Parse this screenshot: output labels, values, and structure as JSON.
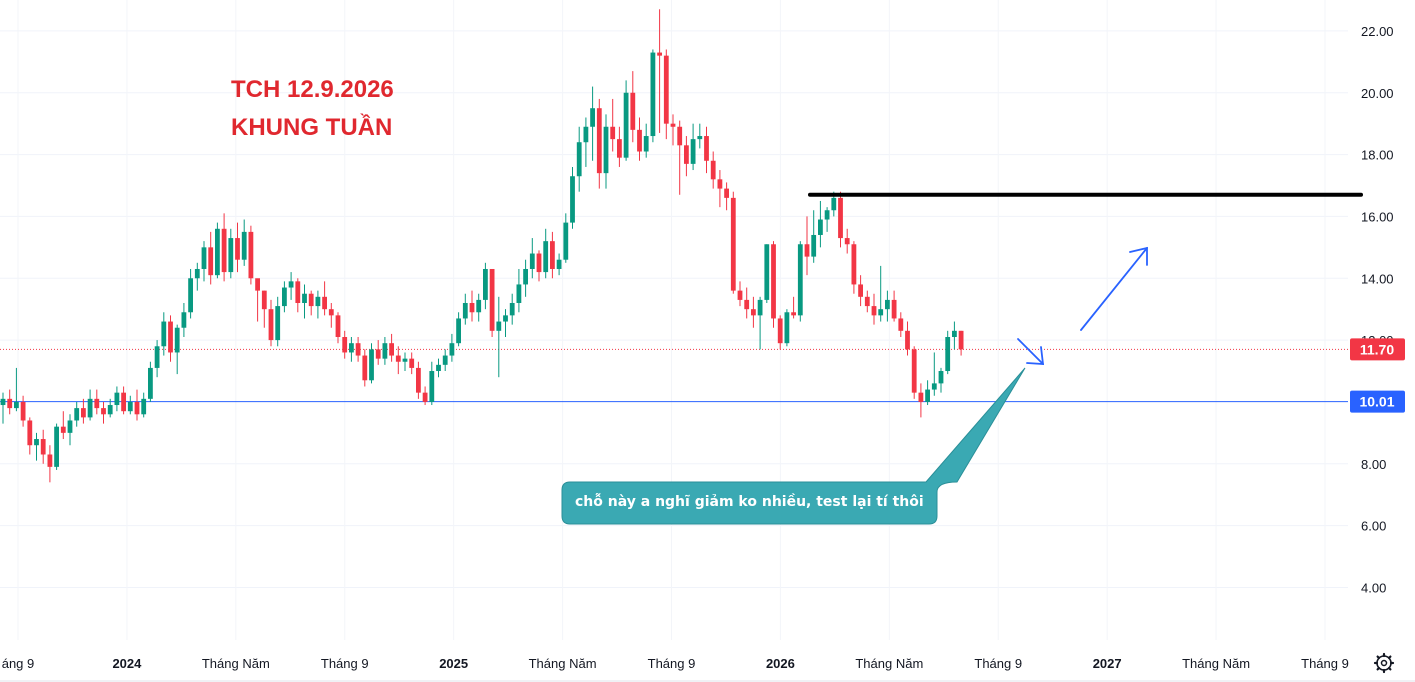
{
  "chart_data": {
    "type": "candlestick",
    "title": "TCH 12.9.2026",
    "subtitle": "KHUNG TUẦN",
    "ylim": [
      2.3,
      23.0
    ],
    "y_ticks": [
      "22.00",
      "20.00",
      "18.00",
      "16.00",
      "14.00",
      "12.00",
      "8.00",
      "6.00",
      "4.00"
    ],
    "x_ticks": [
      {
        "label": "áng 9",
        "bold": false
      },
      {
        "label": "2024",
        "bold": true
      },
      {
        "label": "Tháng Năm",
        "bold": false
      },
      {
        "label": "Tháng 9",
        "bold": false
      },
      {
        "label": "2025",
        "bold": true
      },
      {
        "label": "Tháng Năm",
        "bold": false
      },
      {
        "label": "Tháng 9",
        "bold": false
      },
      {
        "label": "2026",
        "bold": true
      },
      {
        "label": "Tháng Năm",
        "bold": false
      },
      {
        "label": "Tháng 9",
        "bold": false
      },
      {
        "label": "2027",
        "bold": true
      },
      {
        "label": "Tháng Năm",
        "bold": false
      },
      {
        "label": "Tháng 9",
        "bold": false
      }
    ],
    "price_lines": [
      {
        "value": 11.7,
        "label": "11.70",
        "color": "#f23645",
        "style": "dotted"
      },
      {
        "value": 10.01,
        "label": "10.01",
        "color": "#2962ff",
        "style": "solid"
      }
    ],
    "resistance": {
      "value": 16.7,
      "color": "#000000"
    },
    "annotation": "chỗ này a nghĩ giảm ko nhiều, test lại tí thôi",
    "colors": {
      "up": "#089981",
      "down": "#f23645",
      "callout": "#3aa9b3",
      "arrow": "#2962ff"
    },
    "candles": [
      [
        9.9,
        10.3,
        9.3,
        10.1
      ],
      [
        10.1,
        10.4,
        9.6,
        9.8
      ],
      [
        9.8,
        11.1,
        9.7,
        10.0
      ],
      [
        10.0,
        10.2,
        9.2,
        9.4
      ],
      [
        9.4,
        9.5,
        8.3,
        8.6
      ],
      [
        8.6,
        9.0,
        8.1,
        8.8
      ],
      [
        8.8,
        9.1,
        8.0,
        8.3
      ],
      [
        8.3,
        8.6,
        7.4,
        7.9
      ],
      [
        7.9,
        9.3,
        7.8,
        9.2
      ],
      [
        9.2,
        9.7,
        8.8,
        9.0
      ],
      [
        9.0,
        9.6,
        8.6,
        9.4
      ],
      [
        9.4,
        10.0,
        9.2,
        9.8
      ],
      [
        9.8,
        10.1,
        9.3,
        9.5
      ],
      [
        9.5,
        10.4,
        9.4,
        10.1
      ],
      [
        10.1,
        10.4,
        9.6,
        9.8
      ],
      [
        9.8,
        10.0,
        9.3,
        9.6
      ],
      [
        9.6,
        10.1,
        9.5,
        9.9
      ],
      [
        9.9,
        10.5,
        9.7,
        10.3
      ],
      [
        10.3,
        10.5,
        9.6,
        9.7
      ],
      [
        9.7,
        10.2,
        9.6,
        10.0
      ],
      [
        10.0,
        10.4,
        9.4,
        9.6
      ],
      [
        9.6,
        10.3,
        9.5,
        10.1
      ],
      [
        10.1,
        11.3,
        10.0,
        11.1
      ],
      [
        11.1,
        12.0,
        10.8,
        11.8
      ],
      [
        11.8,
        12.9,
        11.5,
        12.6
      ],
      [
        12.6,
        12.8,
        11.3,
        11.6
      ],
      [
        11.6,
        12.5,
        10.9,
        12.4
      ],
      [
        12.4,
        13.2,
        12.1,
        12.9
      ],
      [
        12.9,
        14.3,
        12.7,
        14.0
      ],
      [
        14.0,
        14.5,
        13.6,
        14.3
      ],
      [
        14.3,
        15.2,
        13.9,
        15.0
      ],
      [
        15.0,
        15.5,
        13.8,
        14.1
      ],
      [
        14.1,
        15.8,
        14.0,
        15.6
      ],
      [
        15.6,
        16.1,
        13.9,
        14.2
      ],
      [
        14.2,
        15.6,
        14.0,
        15.3
      ],
      [
        15.3,
        15.8,
        14.2,
        14.6
      ],
      [
        14.6,
        15.9,
        14.4,
        15.5
      ],
      [
        15.5,
        15.7,
        13.8,
        14.0
      ],
      [
        14.0,
        13.9,
        12.6,
        13.6
      ],
      [
        13.6,
        13.6,
        12.4,
        13.0
      ],
      [
        13.0,
        13.3,
        11.8,
        12.0
      ],
      [
        12.0,
        13.4,
        11.8,
        13.1
      ],
      [
        13.1,
        13.9,
        12.9,
        13.7
      ],
      [
        13.7,
        14.2,
        13.3,
        13.9
      ],
      [
        13.9,
        14.0,
        12.9,
        13.2
      ],
      [
        13.2,
        13.8,
        12.7,
        13.5
      ],
      [
        13.5,
        13.6,
        12.8,
        13.1
      ],
      [
        13.1,
        13.6,
        12.7,
        13.4
      ],
      [
        13.4,
        13.9,
        12.8,
        13.0
      ],
      [
        13.0,
        13.2,
        12.4,
        12.8
      ],
      [
        12.8,
        12.9,
        11.9,
        12.1
      ],
      [
        12.1,
        12.3,
        11.4,
        11.6
      ],
      [
        11.6,
        12.1,
        11.3,
        11.9
      ],
      [
        11.9,
        12.1,
        11.3,
        11.5
      ],
      [
        11.5,
        11.7,
        10.5,
        10.7
      ],
      [
        10.7,
        11.9,
        10.6,
        11.7
      ],
      [
        11.7,
        12.0,
        11.2,
        11.4
      ],
      [
        11.4,
        12.1,
        11.2,
        11.9
      ],
      [
        11.9,
        12.2,
        11.3,
        11.5
      ],
      [
        11.5,
        11.8,
        10.9,
        11.3
      ],
      [
        11.3,
        11.6,
        11.0,
        11.4
      ],
      [
        11.4,
        11.6,
        10.9,
        11.1
      ],
      [
        11.1,
        11.3,
        10.1,
        10.3
      ],
      [
        10.3,
        10.5,
        9.9,
        10.0
      ],
      [
        10.0,
        11.3,
        9.9,
        11.0
      ],
      [
        11.0,
        11.4,
        10.8,
        11.2
      ],
      [
        11.2,
        11.7,
        11.0,
        11.5
      ],
      [
        11.5,
        12.2,
        11.3,
        11.9
      ],
      [
        11.9,
        12.9,
        11.8,
        12.7
      ],
      [
        12.7,
        13.5,
        12.5,
        13.2
      ],
      [
        13.2,
        13.6,
        12.6,
        12.9
      ],
      [
        12.9,
        13.5,
        12.6,
        13.3
      ],
      [
        13.3,
        14.5,
        13.0,
        14.3
      ],
      [
        14.3,
        14.3,
        12.1,
        12.3
      ],
      [
        12.3,
        13.4,
        10.8,
        12.6
      ],
      [
        12.6,
        13.0,
        12.1,
        12.8
      ],
      [
        12.8,
        13.5,
        12.5,
        13.2
      ],
      [
        13.2,
        14.3,
        12.9,
        13.8
      ],
      [
        13.8,
        14.6,
        13.4,
        14.3
      ],
      [
        14.3,
        15.3,
        14.0,
        14.8
      ],
      [
        14.8,
        14.9,
        13.9,
        14.2
      ],
      [
        14.2,
        15.6,
        14.0,
        15.2
      ],
      [
        15.2,
        15.5,
        14.0,
        14.3
      ],
      [
        14.3,
        14.8,
        14.1,
        14.6
      ],
      [
        14.6,
        16.1,
        14.5,
        15.8
      ],
      [
        15.8,
        17.6,
        15.6,
        17.3
      ],
      [
        17.3,
        18.9,
        16.8,
        18.4
      ],
      [
        18.4,
        19.2,
        17.6,
        18.9
      ],
      [
        18.9,
        20.2,
        17.8,
        19.5
      ],
      [
        19.5,
        19.8,
        16.9,
        17.4
      ],
      [
        17.4,
        19.3,
        16.9,
        18.9
      ],
      [
        18.9,
        19.8,
        18.1,
        18.5
      ],
      [
        18.5,
        18.9,
        17.6,
        17.9
      ],
      [
        17.9,
        20.4,
        17.8,
        20.0
      ],
      [
        20.0,
        20.7,
        18.4,
        18.8
      ],
      [
        18.8,
        19.2,
        17.8,
        18.1
      ],
      [
        18.1,
        19.0,
        17.9,
        18.6
      ],
      [
        18.6,
        21.4,
        18.4,
        21.3
      ],
      [
        21.3,
        22.7,
        18.7,
        21.2
      ],
      [
        21.2,
        21.4,
        18.5,
        19.0
      ],
      [
        19.0,
        19.3,
        18.3,
        18.9
      ],
      [
        18.9,
        19.1,
        16.7,
        18.3
      ],
      [
        18.3,
        18.6,
        17.3,
        17.7
      ],
      [
        17.7,
        19.0,
        17.5,
        18.5
      ],
      [
        18.5,
        19.0,
        18.2,
        18.6
      ],
      [
        18.6,
        18.9,
        17.4,
        17.8
      ],
      [
        17.8,
        18.1,
        16.9,
        17.2
      ],
      [
        17.2,
        17.5,
        16.3,
        16.9
      ],
      [
        16.9,
        17.1,
        16.2,
        16.6
      ],
      [
        16.6,
        16.8,
        13.5,
        13.6
      ],
      [
        13.6,
        13.9,
        13.1,
        13.3
      ],
      [
        13.3,
        13.7,
        12.7,
        13.0
      ],
      [
        13.0,
        13.4,
        12.4,
        12.8
      ],
      [
        12.8,
        13.4,
        11.7,
        13.3
      ],
      [
        13.3,
        15.1,
        13.2,
        15.1
      ],
      [
        15.1,
        15.2,
        12.4,
        12.7
      ],
      [
        12.7,
        12.8,
        11.7,
        11.9
      ],
      [
        11.9,
        13.0,
        11.8,
        12.9
      ],
      [
        12.9,
        13.4,
        12.7,
        12.8
      ],
      [
        12.8,
        15.2,
        12.6,
        15.1
      ],
      [
        15.1,
        16.0,
        14.1,
        14.7
      ],
      [
        14.7,
        16.2,
        14.5,
        15.4
      ],
      [
        15.4,
        16.5,
        15.0,
        15.9
      ],
      [
        15.9,
        16.3,
        15.5,
        16.2
      ],
      [
        16.2,
        16.8,
        16.0,
        16.6
      ],
      [
        16.6,
        16.8,
        15.0,
        15.3
      ],
      [
        15.3,
        15.6,
        14.8,
        15.1
      ],
      [
        15.1,
        15.2,
        13.5,
        13.8
      ],
      [
        13.8,
        14.1,
        13.1,
        13.4
      ],
      [
        13.4,
        13.6,
        12.9,
        13.1
      ],
      [
        13.1,
        13.5,
        12.5,
        12.8
      ],
      [
        12.8,
        14.4,
        12.6,
        13.0
      ],
      [
        13.0,
        13.6,
        12.6,
        13.3
      ],
      [
        13.3,
        13.6,
        12.6,
        12.7
      ],
      [
        12.7,
        12.9,
        12.1,
        12.3
      ],
      [
        12.3,
        12.6,
        11.5,
        11.7
      ],
      [
        11.7,
        11.8,
        10.1,
        10.3
      ],
      [
        10.3,
        10.6,
        9.5,
        10.0
      ],
      [
        10.0,
        10.7,
        9.9,
        10.4
      ],
      [
        10.4,
        11.6,
        10.2,
        10.6
      ],
      [
        10.6,
        11.1,
        10.3,
        11.0
      ],
      [
        11.0,
        12.3,
        10.9,
        12.1
      ],
      [
        12.1,
        12.6,
        11.7,
        12.3
      ],
      [
        12.3,
        12.3,
        11.5,
        11.7
      ]
    ]
  }
}
